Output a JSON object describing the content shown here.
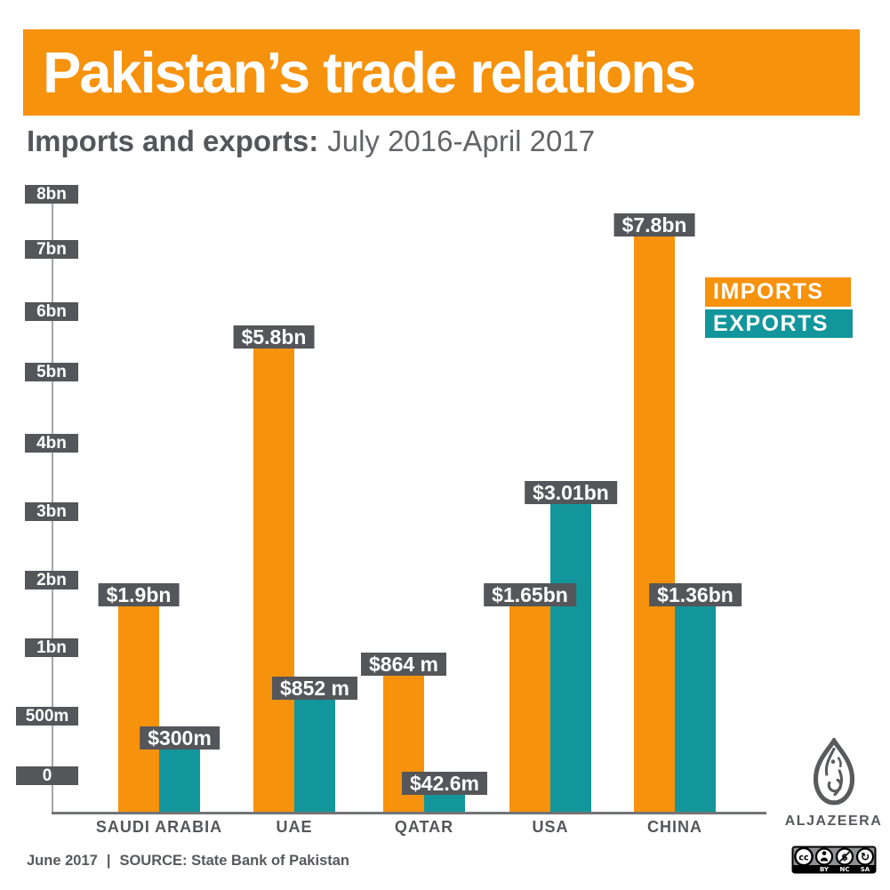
{
  "header": {
    "title": "Pakistan’s trade relations",
    "subtitle_bold": "Imports and exports:",
    "subtitle_rest": "July 2016-April 2017"
  },
  "legend": {
    "imports_label": "IMPORTS",
    "exports_label": "EXPORTS"
  },
  "footer": {
    "date": "June 2017",
    "separator": "|",
    "source": "SOURCE: State Bank of Pakistan"
  },
  "branding": {
    "wordmark": "ALJAZEERA",
    "license_cc": "cc",
    "license_labels": [
      "BY",
      "NC",
      "SA"
    ]
  },
  "colors": {
    "imports": "#F6920B",
    "exports": "#13969B",
    "badge_gray": "#55565A",
    "banner_orange": "#F6920B",
    "text_gray": "#58595B"
  },
  "chart_data": {
    "type": "bar",
    "title": "Pakistan's trade relations",
    "subtitle": "Imports and exports: July 2016-April 2017",
    "categories": [
      "SAUDI ARABIA",
      "UAE",
      "QATAR",
      "USA",
      "CHINA"
    ],
    "series": [
      {
        "name": "IMPORTS",
        "color": "#F6920B",
        "labels": [
          "$1.9bn",
          "$5.8bn",
          "$864 m",
          "$1.65bn",
          "$7.8bn"
        ],
        "values_usd_bn": [
          1.9,
          5.8,
          0.864,
          1.65,
          7.8
        ]
      },
      {
        "name": "EXPORTS",
        "color": "#13969B",
        "labels": [
          "$300m",
          "$852 m",
          "$42.6m",
          "$3.01bn",
          "$1.36bn"
        ],
        "values_usd_bn": [
          0.3,
          0.852,
          0.0426,
          3.01,
          1.36
        ]
      }
    ],
    "y_axis_ticks": [
      "8bn",
      "7bn",
      "6bn",
      "5bn",
      "4bn",
      "3bn",
      "2bn",
      "1bn",
      "500m",
      "0"
    ],
    "y_axis_note": "non-linear scale below 1bn (500m and 0 get full gridline steps)",
    "ylim": [
      0,
      8
    ],
    "grid": false,
    "legend_position": "right",
    "source": "State Bank of Pakistan",
    "date": "June 2017"
  }
}
